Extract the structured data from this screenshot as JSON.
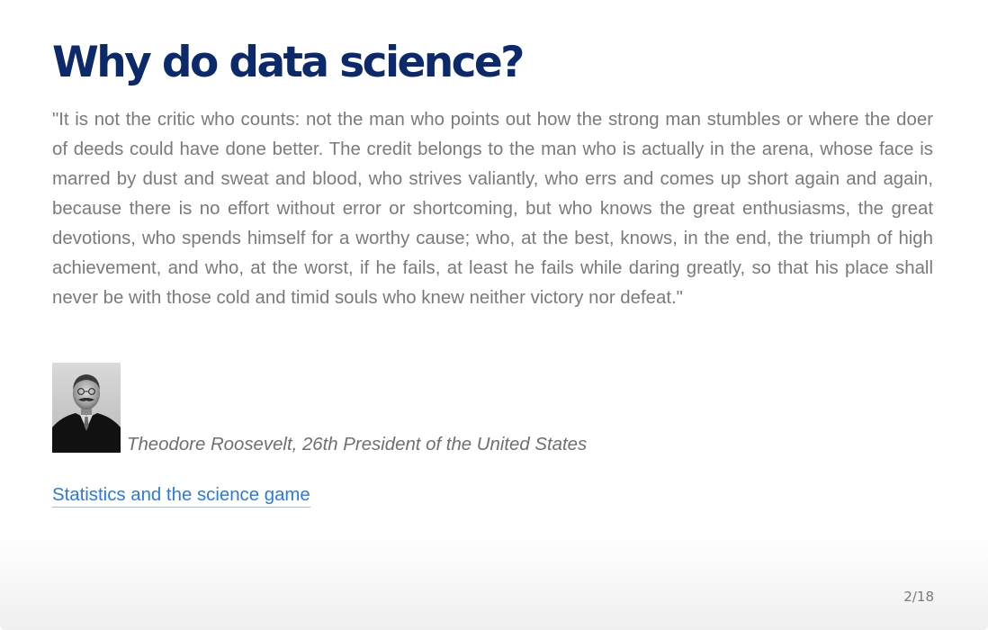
{
  "slide": {
    "title": "Why do data science?",
    "quote": "\"It is not the critic who counts: not the man who points out how the strong man stumbles or where the doer of deeds could have done better. The credit belongs to the man who is actually in the arena, whose face is marred by dust and sweat and blood, who strives valiantly, who errs and comes up short again and again, because there is no effort without error or shortcoming, but who knows the great enthusiasms, the great devotions, who spends himself for a worthy cause; who, at the best, knows, in the end, the triumph of high achievement, and who, at the worst, if he fails, at least he fails while daring greatly, so that his place shall never be with those cold and timid souls who knew neither victory nor defeat.\"",
    "attribution": "Theodore Roosevelt, 26th President of the United States",
    "link_text": "Statistics and the science game",
    "slide_number": "2/18"
  },
  "colors": {
    "title": "#0c2a6b",
    "text": "#7a7a7a",
    "link": "#2a7ae2"
  }
}
